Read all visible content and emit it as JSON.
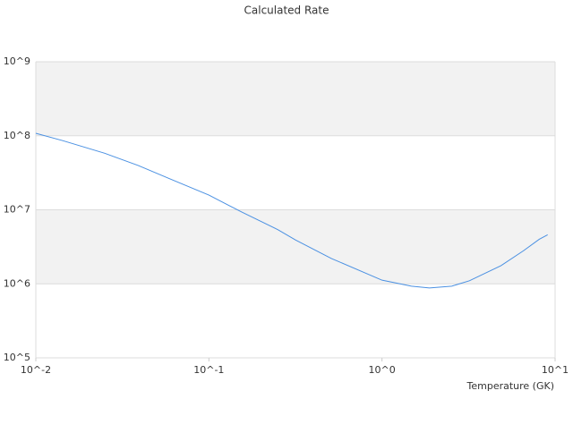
{
  "chart_data": {
    "type": "line",
    "title": "Calculated Rate",
    "x_label": "Temperature (GK)",
    "x": [
      0.01,
      0.0143,
      0.025,
      0.039,
      0.06,
      0.1,
      0.155,
      0.25,
      0.317,
      0.51,
      1,
      1.48,
      1.88,
      2.53,
      3.2,
      4.87,
      6.57,
      8.1,
      9.06
    ],
    "series": [
      {
        "name": "Rate",
        "color": "#4a90e2",
        "values": [
          108000000,
          86000000,
          58000000,
          39700000,
          26000000,
          15800000,
          9300000,
          5400000,
          3900000,
          2200000,
          1120000,
          930000,
          880000,
          930000,
          1100000,
          1760000,
          2800000,
          4000000,
          4600000
        ]
      }
    ],
    "xlim": [
      0.01,
      10
    ],
    "ylim": [
      100000,
      1000000000
    ],
    "xticks": [
      {
        "value": 0.01,
        "label": "10^-2"
      },
      {
        "value": 0.1,
        "label": "10^-1"
      },
      {
        "value": 1,
        "label": "10^0"
      },
      {
        "value": 10,
        "label": "10^1"
      }
    ],
    "yticks": [
      {
        "value": 100000,
        "label": "10^5"
      },
      {
        "value": 1000000,
        "label": "10^6"
      },
      {
        "value": 10000000,
        "label": "10^7"
      },
      {
        "value": 100000000,
        "label": "10^8"
      },
      {
        "value": 1000000000,
        "label": "10^9"
      }
    ],
    "xlog": true,
    "ylog": true,
    "grid": true,
    "band_color": "#f2f2f2"
  }
}
